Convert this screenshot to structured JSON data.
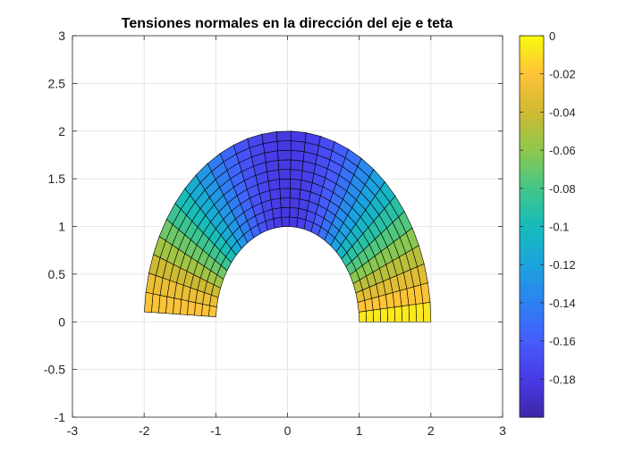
{
  "chart_data": {
    "type": "heatmap",
    "subtype": "polar-mesh-patch",
    "title": "Tensiones normales en la dirección del eje e teta",
    "xlabel": "",
    "ylabel": "",
    "xlim": [
      -3,
      3
    ],
    "ylim": [
      -1,
      3
    ],
    "xticks": [
      -3,
      -2,
      -1,
      0,
      1,
      2,
      3
    ],
    "yticks": [
      -1,
      -0.5,
      0,
      0.5,
      1,
      1.5,
      2,
      2.5,
      3
    ],
    "xtick_labels": [
      "-3",
      "-2",
      "-1",
      "0",
      "1",
      "2",
      "3"
    ],
    "ytick_labels": [
      "-1",
      "-0.5",
      "0",
      "0.5",
      "1",
      "1.5",
      "2",
      "2.5",
      "3"
    ],
    "grid": true,
    "mesh": {
      "r_inner": 1,
      "r_outer": 2,
      "theta_start_deg": 0,
      "theta_end_deg": 177,
      "radial_divisions": 10,
      "angular_divisions": 30
    },
    "values_by_theta": {
      "theta_deg": [
        0,
        10,
        20,
        30,
        40,
        50,
        60,
        70,
        80,
        90,
        100,
        110,
        120,
        130,
        140,
        150,
        160,
        170,
        177
      ],
      "value": [
        0.0,
        -0.022,
        -0.045,
        -0.07,
        -0.095,
        -0.12,
        -0.145,
        -0.165,
        -0.178,
        -0.183,
        -0.178,
        -0.165,
        -0.145,
        -0.12,
        -0.095,
        -0.07,
        -0.045,
        -0.025,
        -0.018
      ]
    },
    "colorbar": {
      "colormap": "parula",
      "clim": [
        -0.2,
        0
      ],
      "location": "right",
      "ticks": [
        0,
        -0.02,
        -0.04,
        -0.06,
        -0.08,
        -0.1,
        -0.12,
        -0.14,
        -0.16,
        -0.18
      ],
      "tick_labels": [
        "0",
        "-0.02",
        "-0.04",
        "-0.06",
        "-0.08",
        "-0.1",
        "-0.12",
        "-0.14",
        "-0.16",
        "-0.18"
      ]
    }
  }
}
